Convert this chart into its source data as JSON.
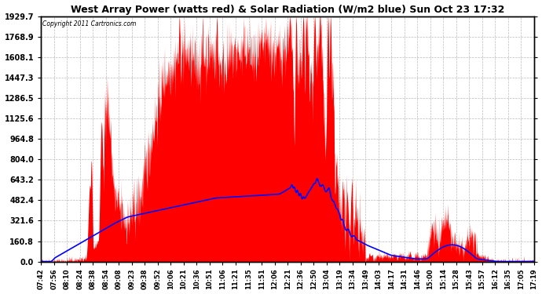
{
  "title": "West Array Power (watts red) & Solar Radiation (W/m2 blue) Sun Oct 23 17:32",
  "copyright": "Copyright 2011 Cartronics.com",
  "y_max": 1929.7,
  "y_ticks": [
    0.0,
    160.8,
    321.6,
    482.4,
    643.2,
    804.0,
    964.8,
    1125.6,
    1286.5,
    1447.3,
    1608.1,
    1768.9,
    1929.7
  ],
  "x_labels": [
    "07:42",
    "07:56",
    "08:10",
    "08:24",
    "08:38",
    "08:54",
    "09:08",
    "09:23",
    "09:38",
    "09:52",
    "10:06",
    "10:21",
    "10:36",
    "10:51",
    "11:06",
    "11:21",
    "11:35",
    "11:51",
    "12:06",
    "12:21",
    "12:36",
    "12:50",
    "13:04",
    "13:19",
    "13:34",
    "13:49",
    "14:03",
    "14:17",
    "14:31",
    "14:46",
    "15:00",
    "15:14",
    "15:28",
    "15:43",
    "15:57",
    "16:12",
    "16:35",
    "17:05",
    "17:19"
  ],
  "bg_color": "#ffffff",
  "plot_bg": "#ffffff",
  "grid_color": "#aaaaaa",
  "red_color": "#ff0000",
  "blue_color": "#0000ff",
  "title_fontsize": 9,
  "tick_fontsize": 7,
  "x_tick_fontsize": 6
}
